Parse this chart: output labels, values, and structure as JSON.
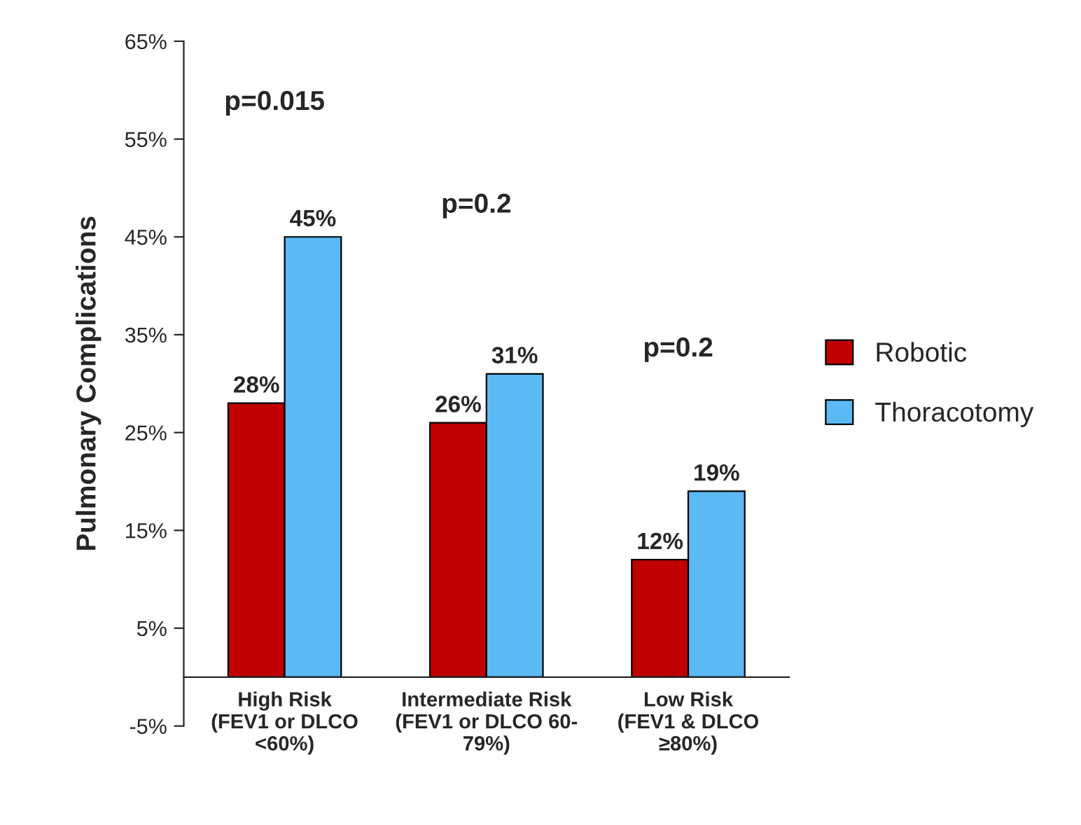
{
  "chart_data": {
    "type": "bar",
    "ylabel": "Pulmonary Complications",
    "categories": [
      "High Risk\n(FEV1 or DLCO\n<60%)",
      "Intermediate Risk\n(FEV1 or DLCO 60-\n79%)",
      "Low Risk\n(FEV1 & DLCO\n≥80%)"
    ],
    "series": [
      {
        "name": "Robotic",
        "color": "#c00000",
        "values": [
          28,
          26,
          12
        ],
        "value_labels": [
          "28%",
          "26%",
          "12%"
        ]
      },
      {
        "name": "Thoracotomy",
        "color": "#5bb9f4",
        "values": [
          45,
          31,
          19
        ],
        "value_labels": [
          "45%",
          "31%",
          "19%"
        ]
      }
    ],
    "ylim": [
      -5,
      65
    ],
    "yticks": [
      {
        "value": -5,
        "label": "-5%"
      },
      {
        "value": 5,
        "label": "5%"
      },
      {
        "value": 15,
        "label": "15%"
      },
      {
        "value": 25,
        "label": "25%"
      },
      {
        "value": 35,
        "label": "35%"
      },
      {
        "value": 45,
        "label": "45%"
      },
      {
        "value": 55,
        "label": "55%"
      },
      {
        "value": 65,
        "label": "65%"
      }
    ],
    "annotations": [
      "p=0.015",
      "p=0.2",
      "p=0.2"
    ],
    "grid": false,
    "legend": "right"
  }
}
